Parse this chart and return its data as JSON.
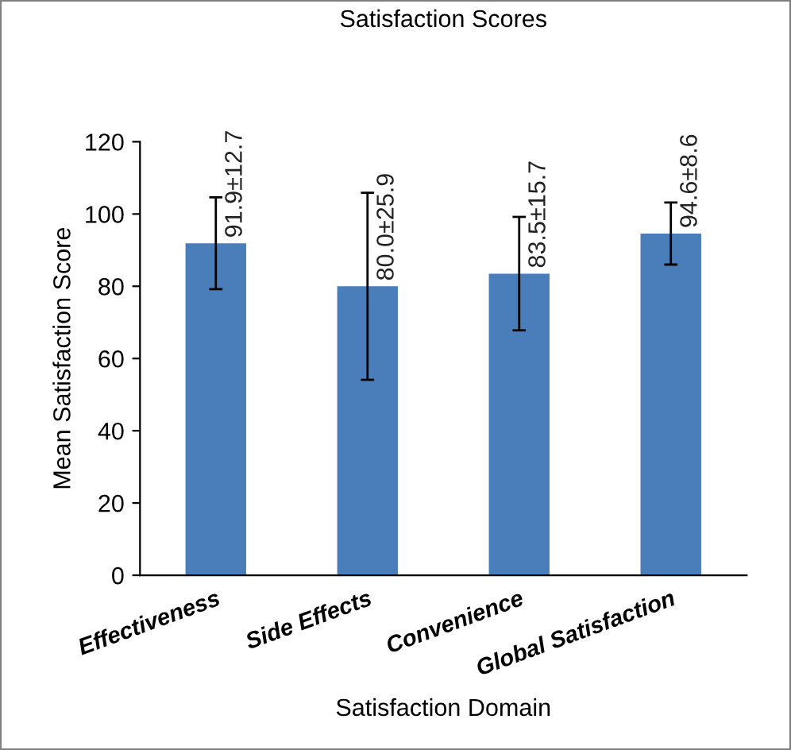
{
  "chart_data": {
    "type": "bar",
    "title": "Satisfaction Scores",
    "xlabel": "Satisfaction Domain",
    "ylabel": "Mean Satisfaction Score",
    "categories": [
      "Effectiveness",
      "Side Effects",
      "Convenience",
      "Global Satisfaction"
    ],
    "values": [
      91.9,
      80.0,
      83.5,
      94.6
    ],
    "errors": [
      12.7,
      25.9,
      15.7,
      8.6
    ],
    "value_labels": [
      "91.9±12.7",
      "80.0±25.9",
      "83.5±15.7",
      "94.6±8.6"
    ],
    "color": "#4a7ebb",
    "ylim": [
      0,
      120
    ],
    "yticks": [
      0,
      20,
      40,
      60,
      80,
      100,
      120
    ],
    "grid": false,
    "legend": false
  }
}
